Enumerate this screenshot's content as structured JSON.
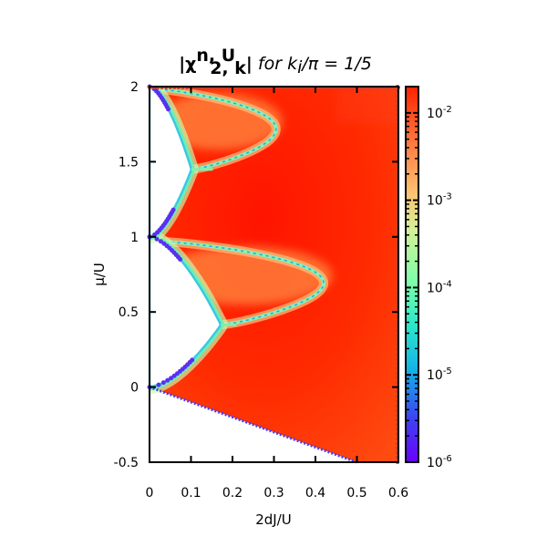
{
  "chart_data": {
    "type": "heatmap",
    "title": {
      "abs_open": "|",
      "chi": "χ",
      "chi_sup": "n, U",
      "chi_sub": "2, k",
      "abs_close": "|",
      "rest_prefix": " for ",
      "k": "k",
      "k_sub": "i",
      "rest_suffix": "/π = 1/5"
    },
    "xlabel": "2dJ/U",
    "ylabel": "μ/U",
    "xlim": [
      0,
      0.6
    ],
    "ylim": [
      -0.5,
      2
    ],
    "x_ticks": [
      {
        "value": 0,
        "label": "0"
      },
      {
        "value": 0.1,
        "label": "0.1"
      },
      {
        "value": 0.2,
        "label": "0.2"
      },
      {
        "value": 0.3,
        "label": "0.3"
      },
      {
        "value": 0.4,
        "label": "0.4"
      },
      {
        "value": 0.5,
        "label": "0.5"
      },
      {
        "value": 0.6,
        "label": "0.6"
      }
    ],
    "y_ticks": [
      {
        "value": -0.5,
        "label": "-0.5"
      },
      {
        "value": 0,
        "label": "0"
      },
      {
        "value": 0.5,
        "label": "0.5"
      },
      {
        "value": 1,
        "label": "1"
      },
      {
        "value": 1.5,
        "label": "1.5"
      },
      {
        "value": 2,
        "label": "2"
      }
    ],
    "colorbar": {
      "scale": "log",
      "range": [
        1e-06,
        0.02
      ],
      "ticks": [
        {
          "value": 0.01,
          "base": "10",
          "exp": "-2"
        },
        {
          "value": 0.001,
          "base": "10",
          "exp": "-3"
        },
        {
          "value": 0.0001,
          "base": "10",
          "exp": "-4"
        },
        {
          "value": 1e-05,
          "base": "10",
          "exp": "-5"
        },
        {
          "value": 1e-06,
          "base": "10",
          "exp": "-6"
        }
      ],
      "colors_bottom_to_top": [
        "#6a00ff",
        "#3c46f0",
        "#14b4e6",
        "#2ee8c8",
        "#7dffa8",
        "#d4f098",
        "#ffc070",
        "#ff7a40",
        "#ff2200"
      ]
    },
    "mott_lobes": [
      {
        "n": 0,
        "mu_range": [
          -0.5,
          0.0
        ],
        "tip": [
          0.0,
          0.0
        ]
      },
      {
        "n": 1,
        "mu_range": [
          0.0,
          1.0
        ],
        "tip": [
          0.172,
          0.414
        ]
      },
      {
        "n": 2,
        "mu_range": [
          1.0,
          2.0
        ],
        "tip": [
          0.101,
          1.449
        ]
      }
    ],
    "resonance_arcs": [
      {
        "mu_range": [
          0.414,
          0.97
        ],
        "x_max": 0.42
      },
      {
        "mu_range": [
          1.449,
          1.985
        ],
        "x_max": 0.305
      }
    ],
    "lower_boundary": {
      "from": [
        0.0,
        0.0
      ],
      "to": [
        0.5,
        -0.5
      ]
    }
  }
}
